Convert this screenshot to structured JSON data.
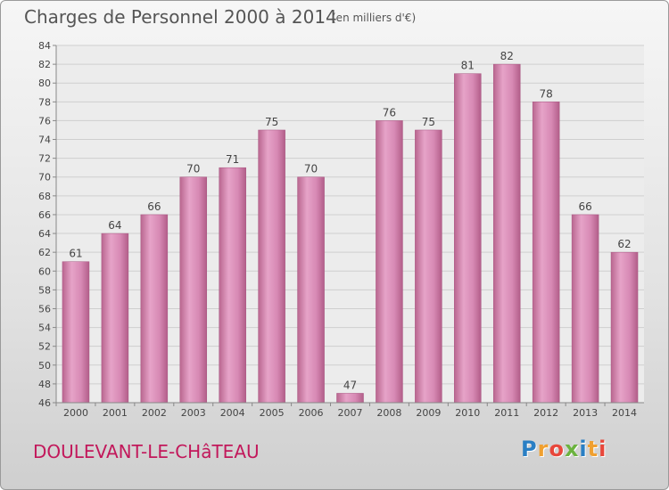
{
  "chart_data": {
    "type": "bar",
    "title": "Charges de Personnel 2000 à 2014",
    "subtitle": "(en milliers d'€)",
    "categories": [
      "2000",
      "2001",
      "2002",
      "2003",
      "2004",
      "2005",
      "2006",
      "2007",
      "2008",
      "2009",
      "2010",
      "2011",
      "2012",
      "2013",
      "2014"
    ],
    "values": [
      61,
      64,
      66,
      70,
      71,
      75,
      70,
      47,
      76,
      75,
      81,
      82,
      78,
      66,
      62
    ],
    "ylim": [
      46,
      84
    ],
    "yticks": [
      46,
      48,
      50,
      52,
      54,
      56,
      58,
      60,
      62,
      64,
      66,
      68,
      70,
      72,
      74,
      76,
      78,
      80,
      82,
      84
    ],
    "grid": true,
    "bar_color": "#d07aa8"
  },
  "location": "DOULEVANT-LE-CHâTEAU",
  "logo": {
    "letters": [
      "P",
      "r",
      "o",
      "x",
      "i",
      "t",
      "i"
    ],
    "colors": [
      "#2a7fc4",
      "#f0a030",
      "#e8473b",
      "#6cb33f",
      "#2a7fc4",
      "#f0a030",
      "#e8473b"
    ]
  }
}
